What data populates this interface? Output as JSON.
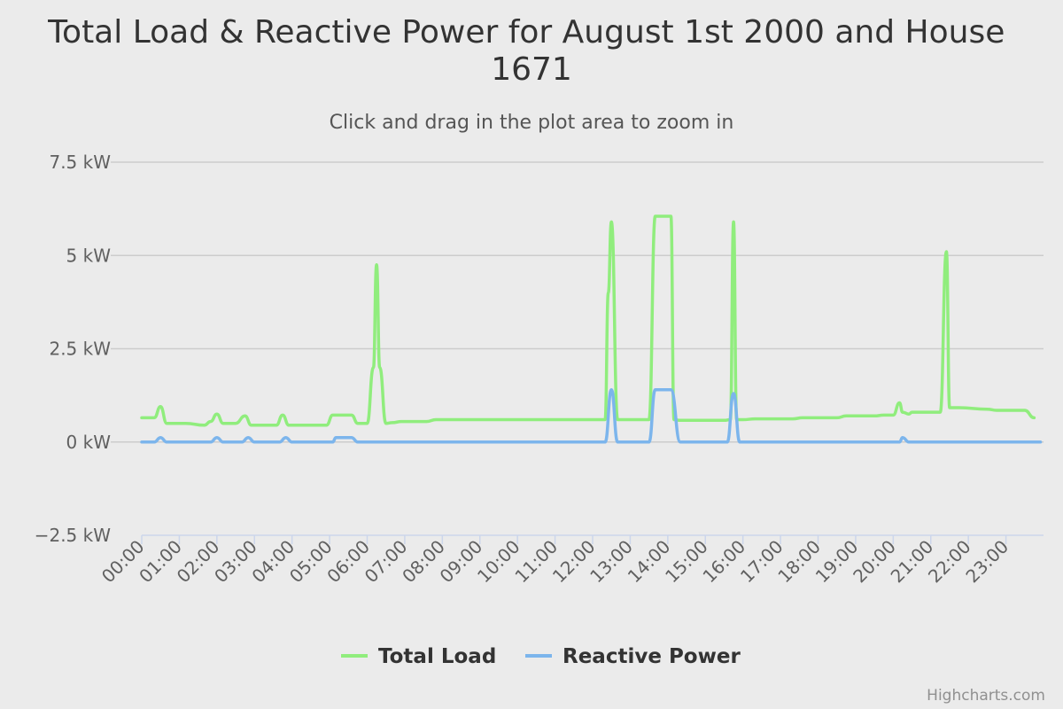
{
  "chart_data": {
    "type": "line",
    "title": "Total Load & Reactive Power for August 1st 2000 and House 1671",
    "title_lines": [
      "Total Load & Reactive Power for August 1st 2000 and House",
      "1671"
    ],
    "subtitle": "Click and drag in the plot area to zoom in",
    "credits": "Highcharts.com",
    "y_axis": {
      "min": -2.5,
      "max": 7.5,
      "tick_values": [
        7.5,
        5,
        2.5,
        0,
        -2.5
      ],
      "tick_labels": [
        "7.5 kW",
        "5 kW",
        "2.5 kW",
        "0 kW",
        "−2.5 kW"
      ]
    },
    "x_axis": {
      "min": 0,
      "max": 24,
      "tick_labels": [
        "00:00",
        "01:00",
        "02:00",
        "03:00",
        "04:00",
        "05:00",
        "06:00",
        "07:00",
        "08:00",
        "09:00",
        "10:00",
        "11:00",
        "12:00",
        "13:00",
        "14:00",
        "15:00",
        "16:00",
        "17:00",
        "18:00",
        "19:00",
        "20:00",
        "21:00",
        "22:00",
        "23:00"
      ]
    },
    "grid": true,
    "legend_position": "bottom-center",
    "series": [
      {
        "name": "Total Load",
        "color": "#90ed7d",
        "x": [
          "00:00",
          "00:20",
          "00:30",
          "00:40",
          "01:10",
          "01:40",
          "01:50",
          "02:00",
          "02:10",
          "02:30",
          "02:45",
          "02:55",
          "03:20",
          "03:35",
          "03:45",
          "03:55",
          "04:30",
          "04:55",
          "05:05",
          "05:35",
          "05:45",
          "06:00",
          "06:10",
          "06:15",
          "06:20",
          "06:30",
          "06:40",
          "06:55",
          "07:35",
          "07:50",
          "08:30",
          "12:10",
          "12:20",
          "12:25",
          "12:30",
          "12:40",
          "12:45",
          "13:30",
          "13:40",
          "13:50",
          "14:05",
          "14:10",
          "14:20",
          "15:30",
          "15:40",
          "15:45",
          "15:50",
          "16:00",
          "16:20",
          "16:45",
          "17:20",
          "17:35",
          "18:30",
          "18:45",
          "19:30",
          "19:45",
          "20:00",
          "20:10",
          "20:15",
          "20:25",
          "20:30",
          "20:45",
          "21:15",
          "21:25",
          "21:30",
          "21:35",
          "21:45",
          "22:30",
          "22:45",
          "23:30",
          "23:45"
        ],
        "y": [
          0.65,
          0.65,
          0.95,
          0.5,
          0.5,
          0.45,
          0.55,
          0.75,
          0.5,
          0.5,
          0.7,
          0.45,
          0.45,
          0.45,
          0.72,
          0.45,
          0.45,
          0.45,
          0.72,
          0.72,
          0.5,
          0.5,
          2.0,
          4.75,
          2.0,
          0.5,
          0.52,
          0.55,
          0.55,
          0.6,
          0.6,
          0.6,
          0.6,
          4.0,
          5.9,
          0.6,
          0.6,
          0.6,
          6.05,
          6.05,
          6.05,
          0.6,
          0.58,
          0.58,
          0.6,
          5.9,
          0.6,
          0.6,
          0.62,
          0.62,
          0.62,
          0.65,
          0.65,
          0.7,
          0.7,
          0.72,
          0.72,
          1.05,
          0.8,
          0.75,
          0.8,
          0.8,
          0.8,
          5.1,
          0.92,
          0.92,
          0.92,
          0.88,
          0.85,
          0.85,
          0.65
        ]
      },
      {
        "name": "Reactive Power",
        "color": "#7cb5ec",
        "x": [
          "00:00",
          "00:20",
          "00:30",
          "00:40",
          "01:50",
          "02:00",
          "02:10",
          "02:40",
          "02:50",
          "03:00",
          "03:40",
          "03:50",
          "04:00",
          "05:05",
          "05:10",
          "05:35",
          "05:45",
          "12:20",
          "12:30",
          "12:40",
          "13:30",
          "13:40",
          "14:05",
          "14:20",
          "15:35",
          "15:45",
          "15:55",
          "20:10",
          "20:15",
          "20:25",
          "23:55"
        ],
        "y": [
          0,
          0,
          0.12,
          0,
          0,
          0.12,
          0,
          0,
          0.12,
          0,
          0,
          0.12,
          0,
          0,
          0.12,
          0.12,
          0,
          0,
          1.4,
          0,
          0,
          1.4,
          1.4,
          0,
          0,
          1.3,
          0,
          0,
          0.12,
          0,
          0
        ]
      }
    ]
  }
}
